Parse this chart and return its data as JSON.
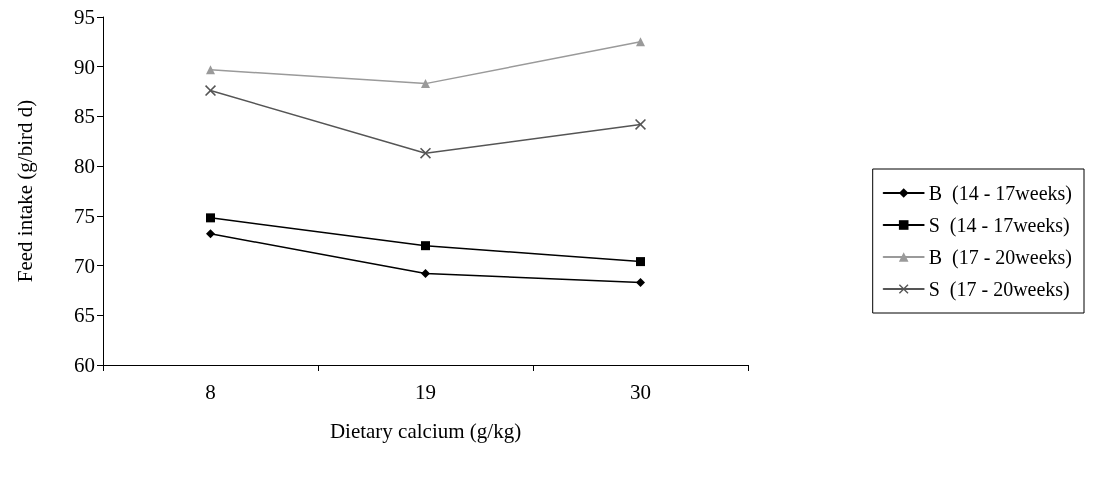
{
  "chart_data": {
    "type": "line",
    "xlabel": "Dietary calcium (g/kg)",
    "ylabel": "Feed intake (g/bird d)",
    "categories": [
      "8",
      "19",
      "30"
    ],
    "ylim": [
      60,
      95
    ],
    "yticks": [
      60,
      65,
      70,
      75,
      80,
      85,
      90,
      95
    ],
    "grid": false,
    "legend": "right",
    "series": [
      {
        "name": "B  (14 - 17weeks)",
        "color": "#000000",
        "marker": "diamond",
        "values": [
          73.2,
          69.2,
          68.3
        ]
      },
      {
        "name": "S  (14 - 17weeks)",
        "color": "#000000",
        "marker": "square",
        "values": [
          74.8,
          72.0,
          70.4
        ]
      },
      {
        "name": "B  (17 - 20weeks)",
        "color": "#9a9a9a",
        "marker": "triangle",
        "values": [
          89.7,
          88.3,
          92.5
        ]
      },
      {
        "name": "S  (17 - 20weeks)",
        "color": "#555555",
        "marker": "cross",
        "values": [
          87.6,
          81.3,
          84.2
        ]
      }
    ]
  }
}
